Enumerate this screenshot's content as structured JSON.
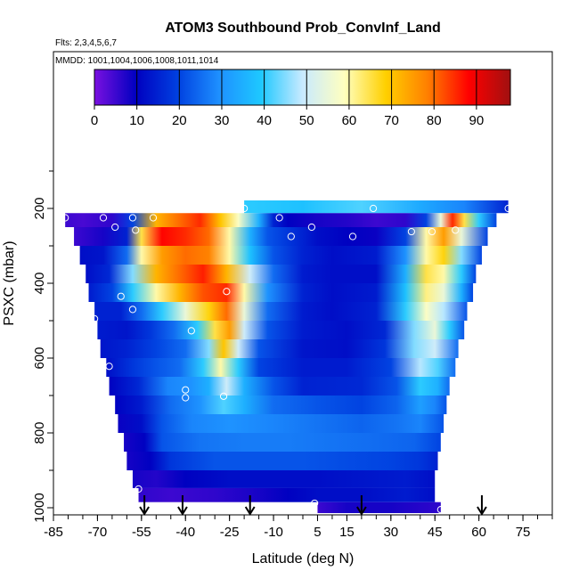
{
  "chart_data": {
    "type": "heatmap",
    "title": "ATOM3 Southbound Prob_ConvInf_Land",
    "flights_label": "Flts: 2,3,4,5,6,7",
    "mmdd_label": "MMDD: 1001,1004,1006,1008,1011,1014",
    "xlabel": "Latitude (deg N)",
    "ylabel": "PSXC (mbar)",
    "xlim": [
      -85,
      85
    ],
    "ylim": [
      1000,
      0
    ],
    "x_ticks": [
      -85,
      -70,
      -55,
      -40,
      -25,
      -10,
      5,
      15,
      30,
      45,
      60,
      75
    ],
    "y_ticks": [
      200,
      400,
      600,
      800,
      1000
    ],
    "colorbar": {
      "ticks": [
        0,
        10,
        20,
        30,
        40,
        50,
        60,
        70,
        80,
        90
      ],
      "range": [
        0,
        98
      ],
      "colors": [
        "#7a10e0",
        "#0000c0",
        "#0040e0",
        "#1e90ff",
        "#1ec8ff",
        "#c8eaff",
        "#ffffc0",
        "#ffd000",
        "#ff8000",
        "#ff0000",
        "#a01010"
      ]
    },
    "arrow_latitudes": [
      -54,
      -41,
      -18,
      20,
      61
    ],
    "rows": [
      {
        "p": 200,
        "x0": -20,
        "x1": 70,
        "values": [
          [
            -20,
            40
          ],
          [
            0,
            38
          ],
          [
            20,
            42
          ],
          [
            40,
            34
          ],
          [
            55,
            28
          ],
          [
            70,
            15
          ]
        ]
      },
      {
        "p": 225,
        "x0": -81,
        "x1": 66,
        "values": [
          [
            -81,
            5
          ],
          [
            -75,
            4
          ],
          [
            -65,
            6
          ],
          [
            -58,
            20
          ],
          [
            -50,
            72
          ],
          [
            -42,
            80
          ],
          [
            -35,
            85
          ],
          [
            -28,
            70
          ],
          [
            -22,
            58
          ],
          [
            -15,
            35
          ],
          [
            -10,
            15
          ],
          [
            -5,
            10
          ],
          [
            5,
            8
          ],
          [
            15,
            7
          ],
          [
            25,
            5
          ],
          [
            35,
            6
          ],
          [
            42,
            20
          ],
          [
            47,
            55
          ],
          [
            51,
            85
          ],
          [
            55,
            65
          ],
          [
            60,
            40
          ],
          [
            66,
            20
          ]
        ]
      },
      {
        "p": 275,
        "x0": -78,
        "x1": 63,
        "values": [
          [
            -78,
            5
          ],
          [
            -68,
            8
          ],
          [
            -60,
            15
          ],
          [
            -55,
            65
          ],
          [
            -48,
            88
          ],
          [
            -40,
            85
          ],
          [
            -32,
            80
          ],
          [
            -25,
            60
          ],
          [
            -18,
            35
          ],
          [
            -12,
            22
          ],
          [
            -5,
            18
          ],
          [
            5,
            12
          ],
          [
            15,
            10
          ],
          [
            25,
            9
          ],
          [
            35,
            20
          ],
          [
            42,
            60
          ],
          [
            48,
            75
          ],
          [
            54,
            55
          ],
          [
            63,
            20
          ]
        ]
      },
      {
        "p": 325,
        "x0": -76,
        "x1": 61,
        "values": [
          [
            -76,
            12
          ],
          [
            -68,
            13
          ],
          [
            -60,
            25
          ],
          [
            -55,
            60
          ],
          [
            -48,
            75
          ],
          [
            -40,
            80
          ],
          [
            -32,
            78
          ],
          [
            -25,
            60
          ],
          [
            -18,
            38
          ],
          [
            -10,
            22
          ],
          [
            0,
            15
          ],
          [
            10,
            12
          ],
          [
            25,
            14
          ],
          [
            35,
            30
          ],
          [
            42,
            60
          ],
          [
            48,
            68
          ],
          [
            54,
            45
          ],
          [
            61,
            20
          ]
        ]
      },
      {
        "p": 375,
        "x0": -74,
        "x1": 59,
        "values": [
          [
            -74,
            12
          ],
          [
            -66,
            16
          ],
          [
            -58,
            45
          ],
          [
            -50,
            72
          ],
          [
            -42,
            80
          ],
          [
            -34,
            86
          ],
          [
            -26,
            72
          ],
          [
            -18,
            50
          ],
          [
            -10,
            25
          ],
          [
            0,
            14
          ],
          [
            10,
            12
          ],
          [
            25,
            12
          ],
          [
            35,
            35
          ],
          [
            42,
            65
          ],
          [
            48,
            60
          ],
          [
            54,
            40
          ],
          [
            59,
            20
          ]
        ]
      },
      {
        "p": 425,
        "x0": -73,
        "x1": 58,
        "values": [
          [
            -73,
            14
          ],
          [
            -65,
            20
          ],
          [
            -58,
            40
          ],
          [
            -50,
            60
          ],
          [
            -42,
            72
          ],
          [
            -34,
            82
          ],
          [
            -26,
            85
          ],
          [
            -20,
            60
          ],
          [
            -12,
            30
          ],
          [
            0,
            15
          ],
          [
            10,
            12
          ],
          [
            25,
            14
          ],
          [
            35,
            38
          ],
          [
            42,
            62
          ],
          [
            48,
            55
          ],
          [
            54,
            35
          ],
          [
            58,
            20
          ]
        ]
      },
      {
        "p": 475,
        "x0": -71,
        "x1": 56,
        "values": [
          [
            -71,
            15
          ],
          [
            -62,
            15
          ],
          [
            -55,
            25
          ],
          [
            -48,
            40
          ],
          [
            -40,
            55
          ],
          [
            -32,
            68
          ],
          [
            -26,
            80
          ],
          [
            -20,
            55
          ],
          [
            -12,
            25
          ],
          [
            0,
            14
          ],
          [
            10,
            12
          ],
          [
            25,
            15
          ],
          [
            35,
            40
          ],
          [
            42,
            58
          ],
          [
            48,
            48
          ],
          [
            56,
            22
          ]
        ]
      },
      {
        "p": 525,
        "x0": -70,
        "x1": 55,
        "values": [
          [
            -70,
            14
          ],
          [
            -60,
            13
          ],
          [
            -52,
            18
          ],
          [
            -44,
            25
          ],
          [
            -36,
            40
          ],
          [
            -30,
            65
          ],
          [
            -25,
            75
          ],
          [
            -20,
            50
          ],
          [
            -12,
            22
          ],
          [
            0,
            14
          ],
          [
            15,
            12
          ],
          [
            28,
            16
          ],
          [
            38,
            45
          ],
          [
            45,
            55
          ],
          [
            50,
            40
          ],
          [
            55,
            22
          ]
        ]
      },
      {
        "p": 575,
        "x0": -69,
        "x1": 53,
        "values": [
          [
            -69,
            13
          ],
          [
            -60,
            15
          ],
          [
            -50,
            20
          ],
          [
            -40,
            25
          ],
          [
            -32,
            45
          ],
          [
            -27,
            70
          ],
          [
            -22,
            50
          ],
          [
            -15,
            22
          ],
          [
            0,
            13
          ],
          [
            15,
            12
          ],
          [
            28,
            18
          ],
          [
            38,
            45
          ],
          [
            45,
            50
          ],
          [
            53,
            25
          ]
        ]
      },
      {
        "p": 625,
        "x0": -67,
        "x1": 52,
        "values": [
          [
            -67,
            12
          ],
          [
            -58,
            18
          ],
          [
            -50,
            22
          ],
          [
            -42,
            25
          ],
          [
            -34,
            40
          ],
          [
            -28,
            60
          ],
          [
            -22,
            40
          ],
          [
            -15,
            20
          ],
          [
            0,
            14
          ],
          [
            15,
            14
          ],
          [
            30,
            20
          ],
          [
            40,
            48
          ],
          [
            46,
            42
          ],
          [
            52,
            25
          ]
        ]
      },
      {
        "p": 675,
        "x0": -66,
        "x1": 50,
        "values": [
          [
            -66,
            10
          ],
          [
            -56,
            16
          ],
          [
            -46,
            28
          ],
          [
            -38,
            30
          ],
          [
            -32,
            35
          ],
          [
            -26,
            50
          ],
          [
            -20,
            35
          ],
          [
            -10,
            22
          ],
          [
            0,
            15
          ],
          [
            20,
            16
          ],
          [
            32,
            22
          ],
          [
            40,
            40
          ],
          [
            46,
            35
          ],
          [
            50,
            25
          ]
        ]
      },
      {
        "p": 725,
        "x0": -64,
        "x1": 49,
        "values": [
          [
            -64,
            10
          ],
          [
            -55,
            14
          ],
          [
            -45,
            25
          ],
          [
            -35,
            30
          ],
          [
            -27,
            42
          ],
          [
            -20,
            35
          ],
          [
            -10,
            25
          ],
          [
            5,
            22
          ],
          [
            20,
            20
          ],
          [
            32,
            24
          ],
          [
            40,
            32
          ],
          [
            45,
            28
          ],
          [
            49,
            22
          ]
        ]
      },
      {
        "p": 775,
        "x0": -63,
        "x1": 48,
        "values": [
          [
            -63,
            9
          ],
          [
            -55,
            12
          ],
          [
            -48,
            22
          ],
          [
            -38,
            28
          ],
          [
            -25,
            30
          ],
          [
            -10,
            28
          ],
          [
            5,
            26
          ],
          [
            20,
            24
          ],
          [
            32,
            26
          ],
          [
            40,
            28
          ],
          [
            48,
            22
          ]
        ]
      },
      {
        "p": 825,
        "x0": -61,
        "x1": 47,
        "values": [
          [
            -61,
            8
          ],
          [
            -54,
            10
          ],
          [
            -48,
            22
          ],
          [
            -35,
            26
          ],
          [
            -20,
            27
          ],
          [
            -5,
            27
          ],
          [
            10,
            26
          ],
          [
            25,
            25
          ],
          [
            38,
            24
          ],
          [
            47,
            20
          ]
        ]
      },
      {
        "p": 875,
        "x0": -60,
        "x1": 46,
        "values": [
          [
            -60,
            8
          ],
          [
            -52,
            10
          ],
          [
            -45,
            18
          ],
          [
            -30,
            22
          ],
          [
            -15,
            22
          ],
          [
            0,
            22
          ],
          [
            15,
            21
          ],
          [
            30,
            20
          ],
          [
            40,
            18
          ],
          [
            46,
            15
          ]
        ]
      },
      {
        "p": 925,
        "x0": -58,
        "x1": 45,
        "values": [
          [
            -58,
            8
          ],
          [
            -50,
            7
          ],
          [
            -40,
            10
          ],
          [
            -25,
            12
          ],
          [
            -10,
            12
          ],
          [
            5,
            12
          ],
          [
            20,
            13
          ],
          [
            35,
            14
          ],
          [
            45,
            12
          ]
        ]
      },
      {
        "p": 970,
        "x0": -56,
        "x1": 45,
        "values": [
          [
            -56,
            6
          ],
          [
            -45,
            5
          ],
          [
            -30,
            6
          ],
          [
            -15,
            8
          ],
          [
            -5,
            10
          ],
          [
            5,
            12
          ],
          [
            20,
            12
          ],
          [
            35,
            14
          ],
          [
            45,
            12
          ]
        ]
      },
      {
        "p": 1000,
        "x0": 5,
        "x1": 47,
        "values": [
          [
            5,
            5
          ],
          [
            15,
            8
          ],
          [
            30,
            8
          ],
          [
            47,
            6
          ]
        ]
      }
    ],
    "points": [
      [
        -20,
        200
      ],
      [
        24,
        200
      ],
      [
        70,
        200
      ],
      [
        -81,
        225
      ],
      [
        -68,
        225
      ],
      [
        -58,
        225
      ],
      [
        -51,
        225
      ],
      [
        -8,
        225
      ],
      [
        -64,
        250
      ],
      [
        -57,
        258
      ],
      [
        3,
        250
      ],
      [
        37,
        262
      ],
      [
        44,
        262
      ],
      [
        52,
        258
      ],
      [
        -4,
        275
      ],
      [
        17,
        275
      ],
      [
        -26,
        422
      ],
      [
        -62,
        435
      ],
      [
        -58,
        470
      ],
      [
        -71,
        495
      ],
      [
        -38,
        527
      ],
      [
        -66,
        622
      ],
      [
        -40,
        685
      ],
      [
        -40,
        706
      ],
      [
        -27,
        702
      ],
      [
        -56,
        950
      ],
      [
        4,
        988
      ],
      [
        47,
        1005
      ]
    ]
  }
}
